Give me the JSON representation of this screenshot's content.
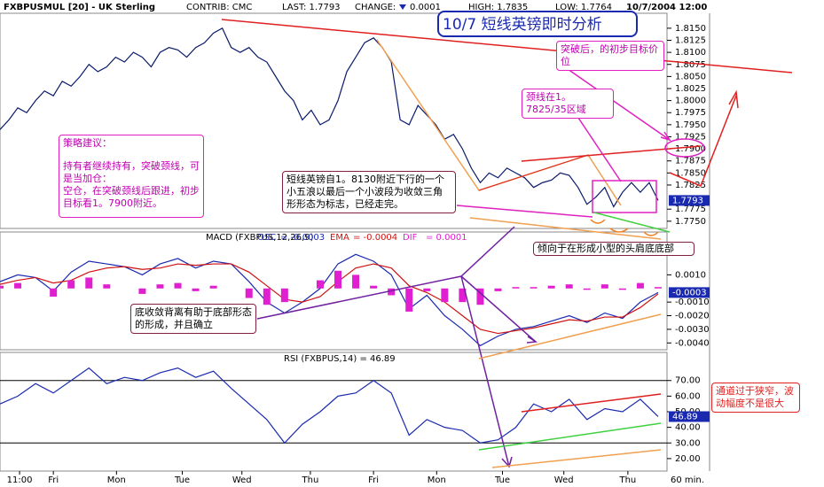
{
  "header": {
    "symbol": "FXBPUSMUL [20] - UK Sterling",
    "contrib": "CONTRIB: CMC",
    "last": "LAST: 1.7793",
    "change_label": "CHANGE:",
    "change": "0.0001",
    "high": "HIGH: 1.7835",
    "low": "LOW: 1.7764",
    "datetime": "10/7/2004 12:00"
  },
  "annotations": {
    "title": "10/7 短线英镑即时分析",
    "target": "突破后，的初步目标价位",
    "neckline": "颈线在1。7825/35区域",
    "strategy_title": "策略建议：",
    "strategy_hold": "持有者继续持有，突破颈线，可是当加仓：",
    "strategy_flat": "空仓，在突破颈线后跟进，初步目标看1。7900附近。",
    "wave": "短线英镑自1。8130附近下行的一个小五浪以最后一个小波段为收敛三角形形态为标志，已经走完。",
    "head_shoulders": "倾向于在形成小型的头肩底底部",
    "divergence": "底收敛背离有助于底部形态的形成，并且确立",
    "channel": "通道过于狭窄，波动幅度不是很大"
  },
  "chart_data": [
    {
      "type": "line",
      "color": "#0a1a6a",
      "last_label": "1.7793",
      "x": [
        0,
        1,
        2,
        3,
        4,
        5,
        6,
        7,
        8,
        9,
        10,
        11,
        12,
        13,
        14,
        15,
        16,
        17,
        18,
        19,
        20,
        21,
        22,
        23,
        24,
        25,
        26,
        27,
        28,
        29,
        30,
        31,
        32,
        33,
        34,
        35,
        36,
        37,
        38,
        39,
        40,
        41,
        42,
        43,
        44,
        45,
        46,
        47,
        48,
        49,
        50,
        51,
        52,
        53,
        54,
        55,
        56,
        57,
        58,
        59,
        60,
        61,
        62,
        63,
        64,
        65,
        66,
        67,
        68,
        69,
        70,
        71,
        72,
        73,
        74
      ],
      "values": [
        1.794,
        1.796,
        1.7985,
        1.7975,
        1.8,
        1.802,
        1.801,
        1.804,
        1.803,
        1.805,
        1.8075,
        1.806,
        1.807,
        1.809,
        1.808,
        1.81,
        1.809,
        1.807,
        1.81,
        1.811,
        1.8105,
        1.809,
        1.811,
        1.812,
        1.814,
        1.815,
        1.811,
        1.81,
        1.811,
        1.809,
        1.808,
        1.805,
        1.802,
        1.8,
        1.796,
        1.798,
        1.795,
        1.796,
        1.8,
        1.806,
        1.809,
        1.812,
        1.813,
        1.811,
        1.808,
        1.796,
        1.795,
        1.799,
        1.797,
        1.795,
        1.792,
        1.793,
        1.79,
        1.786,
        1.783,
        1.785,
        1.784,
        1.786,
        1.785,
        1.784,
        1.782,
        1.783,
        1.7835,
        1.785,
        1.7845,
        1.782,
        1.7785,
        1.78,
        1.782,
        1.778,
        1.781,
        1.783,
        1.781,
        1.783,
        1.7793
      ],
      "xlim": [
        0,
        75
      ],
      "ylim": [
        1.7735,
        1.8181
      ],
      "yticks": [
        {
          "value": 1.815,
          "label": "1.8150"
        },
        {
          "value": 1.8125,
          "label": "1.8125"
        },
        {
          "value": 1.81,
          "label": "1.8100"
        },
        {
          "value": 1.8075,
          "label": "1.8075"
        },
        {
          "value": 1.805,
          "label": "1.8050"
        },
        {
          "value": 1.8025,
          "label": "1.8025"
        },
        {
          "value": 1.8,
          "label": "1.8000"
        },
        {
          "value": 1.7975,
          "label": "1.7975"
        },
        {
          "value": 1.795,
          "label": "1.7950"
        },
        {
          "value": 1.7925,
          "label": "1.7925"
        },
        {
          "value": 1.79,
          "label": "1.7900"
        },
        {
          "value": 1.7875,
          "label": "1.7875"
        },
        {
          "value": 1.785,
          "label": "1.7850"
        },
        {
          "value": 1.7825,
          "label": "1.7825"
        },
        {
          "value": 1.7775,
          "label": "1.7775"
        },
        {
          "value": 1.775,
          "label": "1.7750"
        }
      ]
    },
    {
      "type": "line",
      "title": "MACD (FXBPUS,12,26,9)",
      "last_label": "-0.0003",
      "xlim": [
        0,
        75
      ],
      "ylim": [
        -0.0045,
        0.0033
      ],
      "yticks": [
        {
          "value": 0.001,
          "label": "0.0010"
        },
        {
          "value": -0.001,
          "label": "-0.0010"
        },
        {
          "value": -0.002,
          "label": "-0.0020"
        },
        {
          "value": -0.003,
          "label": "-0.0030"
        },
        {
          "value": -0.004,
          "label": "-0.0040"
        }
      ],
      "x": [
        0,
        2,
        4,
        6,
        8,
        10,
        12,
        14,
        16,
        18,
        20,
        22,
        24,
        26,
        28,
        30,
        32,
        34,
        36,
        38,
        40,
        42,
        44,
        46,
        48,
        50,
        52,
        54,
        56,
        58,
        60,
        62,
        64,
        66,
        68,
        70,
        72,
        74
      ],
      "series": [
        {
          "name": "OSC",
          "readout": "= -0.0003",
          "color": "#1a2ab0",
          "style": "line",
          "values": [
            0.0005,
            0.001,
            0.0008,
            -0.0002,
            0.0012,
            0.002,
            0.0018,
            0.0016,
            0.001,
            0.0018,
            0.0022,
            0.0015,
            0.002,
            0.0018,
            0.0005,
            -0.001,
            -0.0018,
            -0.001,
            0,
            0.0018,
            0.0025,
            0.002,
            0.001,
            -0.0015,
            -0.0005,
            -0.002,
            -0.003,
            -0.0042,
            -0.0035,
            -0.003,
            -0.0028,
            -0.0024,
            -0.002,
            -0.0025,
            -0.0018,
            -0.0022,
            -0.001,
            -0.0003
          ]
        },
        {
          "name": "EMA",
          "readout": "= -0.0004",
          "color": "#d01010",
          "style": "line",
          "values": [
            0.0003,
            0.0006,
            0.0008,
            0.0004,
            0.0006,
            0.0012,
            0.0015,
            0.0016,
            0.0014,
            0.0015,
            0.0018,
            0.0017,
            0.0018,
            0.0018,
            0.0012,
            0.0002,
            -0.0008,
            -0.001,
            -0.0006,
            0.0005,
            0.0015,
            0.0018,
            0.0015,
            0.0002,
            -0.0003,
            -0.001,
            -0.002,
            -0.003,
            -0.0033,
            -0.0031,
            -0.0029,
            -0.0026,
            -0.0023,
            -0.0024,
            -0.0021,
            -0.0021,
            -0.0014,
            -0.0004
          ]
        },
        {
          "name": "DIF",
          "readout": "= 0.0001",
          "color": "#e020d0",
          "style": "bar",
          "values": [
            0.0002,
            0.0004,
            0,
            -0.0006,
            0.0006,
            0.0008,
            0.0003,
            0,
            -0.0004,
            0.0003,
            0.0004,
            -0.0002,
            0.0002,
            0,
            -0.0007,
            -0.0012,
            -0.001,
            0,
            0.0006,
            0.0013,
            0.001,
            0.0002,
            -0.0005,
            -0.0017,
            -0.0002,
            -0.001,
            -0.001,
            -0.0012,
            -0.0002,
            0.0001,
            0.0001,
            0.0002,
            0.0003,
            -0.0001,
            0.0003,
            -0.0001,
            0.0004,
            0.0001
          ]
        }
      ]
    },
    {
      "type": "line",
      "title": "RSI (FXBPUS,14) = 46.89",
      "color": "#1a2ab0",
      "last_label": "46.89",
      "xlim": [
        0,
        75
      ],
      "ylim": [
        12,
        88
      ],
      "ref_lines": [
        70,
        30
      ],
      "yticks": [
        {
          "value": 70,
          "label": "70.00"
        },
        {
          "value": 60,
          "label": "60.00"
        },
        {
          "value": 50,
          "label": "50.00"
        },
        {
          "value": 40,
          "label": "40.00"
        },
        {
          "value": 30,
          "label": "30.00"
        },
        {
          "value": 20,
          "label": "20.00"
        }
      ],
      "x": [
        0,
        2,
        4,
        6,
        8,
        10,
        12,
        14,
        16,
        18,
        20,
        22,
        24,
        26,
        28,
        30,
        32,
        34,
        36,
        38,
        40,
        42,
        44,
        46,
        48,
        50,
        52,
        54,
        56,
        58,
        60,
        62,
        64,
        66,
        68,
        70,
        72,
        74
      ],
      "values": [
        55,
        60,
        68,
        62,
        70,
        78,
        68,
        72,
        70,
        75,
        78,
        72,
        76,
        65,
        55,
        45,
        30,
        42,
        50,
        60,
        62,
        70,
        62,
        35,
        45,
        40,
        38,
        30,
        32,
        40,
        55,
        50,
        58,
        45,
        52,
        50,
        58,
        46.89
      ],
      "xticks": [
        {
          "value": 2.2,
          "label": "11:00"
        },
        {
          "value": 6,
          "label": "Fri"
        },
        {
          "value": 13.1,
          "label": "Mon"
        },
        {
          "value": 20.5,
          "label": "Tue"
        },
        {
          "value": 27.2,
          "label": "Wed"
        },
        {
          "value": 34.9,
          "label": "Thu"
        },
        {
          "value": 42,
          "label": "Fri"
        },
        {
          "value": 49.1,
          "label": "Mon"
        },
        {
          "value": 56.5,
          "label": "Tue"
        },
        {
          "value": 63.4,
          "label": "Wed"
        },
        {
          "value": 70.6,
          "label": "Thu"
        }
      ],
      "x_label": "60 min."
    }
  ]
}
